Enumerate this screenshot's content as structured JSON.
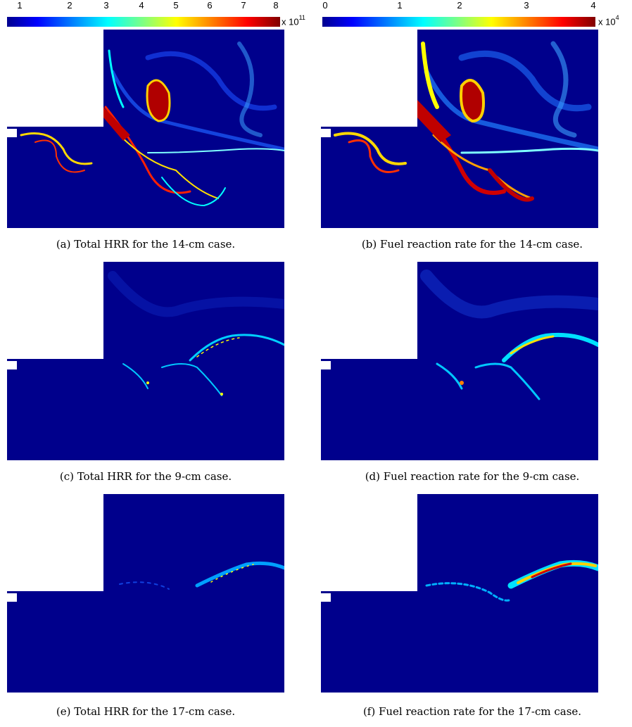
{
  "colorbars": [
    {
      "ticks": [
        "1",
        "2",
        "3",
        "4",
        "5",
        "6",
        "7",
        "8"
      ],
      "multiplier_base": "x 10",
      "multiplier_exp": "11"
    },
    {
      "ticks": [
        "0",
        "1",
        "2",
        "3",
        "4"
      ],
      "multiplier_base": "x 10",
      "multiplier_exp": "4"
    }
  ],
  "captions": {
    "a": "(a) Total HRR for the 14-cm case.",
    "b": "(b) Fuel reaction rate for the 14-cm case.",
    "c": "(c) Total HRR for the 9-cm case.",
    "d": "(d) Fuel reaction rate for the 9-cm case.",
    "e": "(e) Total HRR for the 17-cm case.",
    "f": "(f) Fuel reaction rate for the 17-cm case."
  },
  "colors": {
    "field_background": "#00008c",
    "colormap": "jet"
  }
}
